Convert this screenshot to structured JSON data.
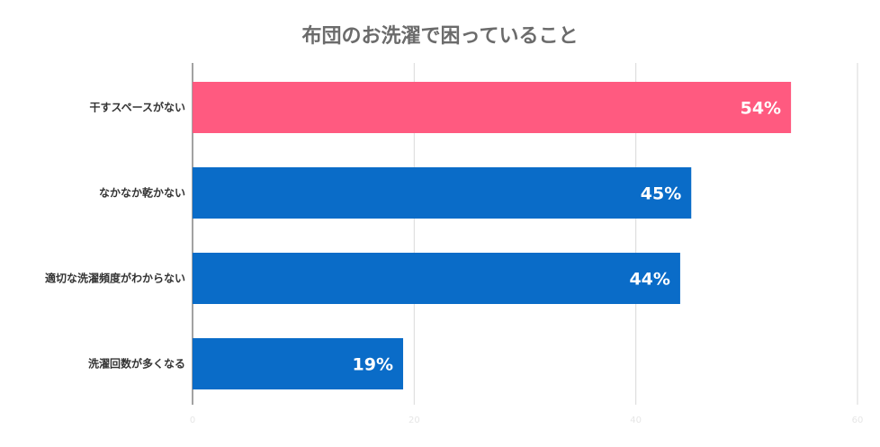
{
  "chart_data": {
    "type": "bar",
    "orientation": "horizontal",
    "title": "布団のお洗濯で困っていること",
    "categories": [
      "干すスペースがない",
      "なかなか乾かない",
      "適切な洗濯頻度がわからない",
      "洗濯回数が多くなる"
    ],
    "values": [
      54,
      45,
      44,
      19
    ],
    "value_labels": [
      "54%",
      "45%",
      "44%",
      "19%"
    ],
    "xlim": [
      0,
      60
    ],
    "x_ticks": [
      0,
      20,
      40,
      60
    ],
    "grid": true,
    "colors": {
      "highlight": "#FF5A80",
      "default": "#0A6CC8",
      "grid": "#D9D9D9",
      "axis": "#444444"
    },
    "highlight_index": 0
  }
}
